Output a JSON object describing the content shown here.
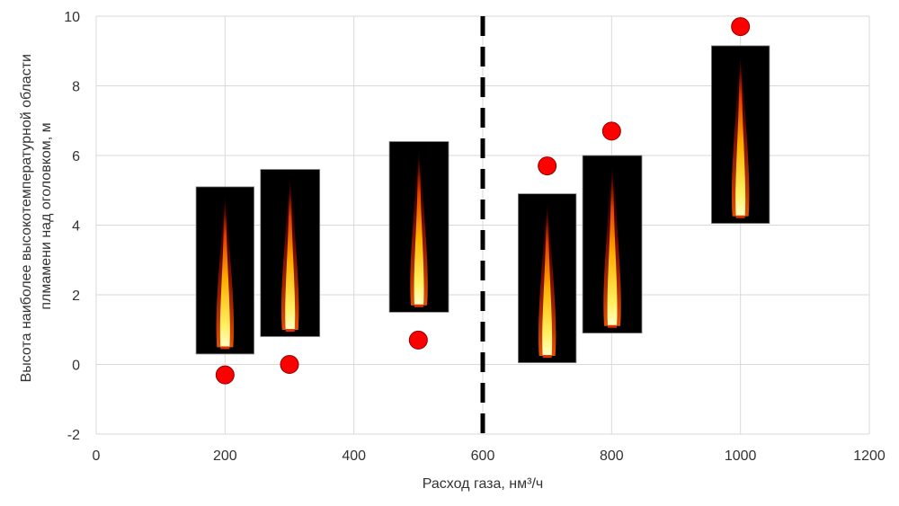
{
  "chart_data": {
    "type": "scatter",
    "title": "",
    "xlabel": "Расход газа, нм³/ч",
    "ylabel_lines": [
      "Высота наиболее высокотемпературной области",
      "плмамени над оголовком, м"
    ],
    "xlim": [
      0,
      1200
    ],
    "ylim": [
      -2,
      10
    ],
    "x_ticks": [
      0,
      200,
      400,
      600,
      800,
      1000,
      1200
    ],
    "y_ticks": [
      -2,
      0,
      2,
      4,
      6,
      8,
      10
    ],
    "grid": true,
    "legend": "none",
    "marker_color": "#ff0000",
    "divider": {
      "x": 600,
      "style": "dashed",
      "color": "#000000"
    },
    "series": [
      {
        "x": [
          200,
          300,
          500,
          700,
          800,
          1000
        ],
        "y": [
          -0.3,
          0.0,
          0.7,
          5.7,
          6.7,
          9.7
        ]
      }
    ],
    "flame_images": [
      {
        "x_range": [
          155,
          245
        ],
        "y_range": [
          0.3,
          5.1
        ]
      },
      {
        "x_range": [
          255,
          347
        ],
        "y_range": [
          0.8,
          5.6
        ]
      },
      {
        "x_range": [
          455,
          547
        ],
        "y_range": [
          1.5,
          6.4
        ]
      },
      {
        "x_range": [
          655,
          745
        ],
        "y_range": [
          0.05,
          4.9
        ]
      },
      {
        "x_range": [
          755,
          847
        ],
        "y_range": [
          0.9,
          6.0
        ]
      },
      {
        "x_range": [
          955,
          1045
        ],
        "y_range": [
          4.05,
          9.15
        ]
      }
    ]
  }
}
